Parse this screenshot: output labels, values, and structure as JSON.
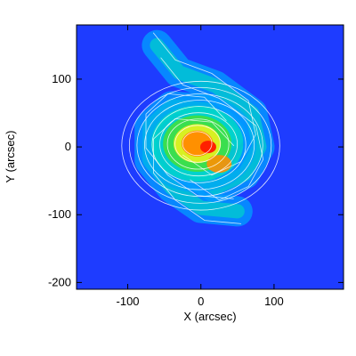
{
  "chart_data": {
    "type": "heatmap",
    "title": "",
    "xlabel": "X (arcsec)",
    "ylabel": "Y (arcsec)",
    "xlim": [
      -170,
      195
    ],
    "ylim": [
      -210,
      180
    ],
    "xticks": [
      -100,
      0,
      100
    ],
    "yticks": [
      -200,
      -100,
      0,
      100
    ],
    "xtick_labels": [
      "-100",
      "0",
      "100"
    ],
    "ytick_labels": [
      "-200",
      "-100",
      "0",
      "100"
    ],
    "colormap": [
      "#1e3cff",
      "#00a0ff",
      "#00e0c0",
      "#40e040",
      "#e0f020",
      "#ff9000",
      "#ff2000"
    ],
    "contour_color": "#ffffff",
    "grid": false,
    "features": {
      "core_peak": {
        "x": 10,
        "y": 0,
        "level": 1.0
      },
      "inner_core": {
        "x": -5,
        "y": 5,
        "level": 0.82
      },
      "secondary_knot": {
        "x": 25,
        "y": -25,
        "level": 0.72
      },
      "spiral_arms": [
        {
          "name": "",
          "points": [
            [
              40,
              20
            ],
            [
              10,
              55
            ],
            [
              -40,
              60
            ],
            [
              -70,
              30
            ],
            [
              -70,
              -20
            ],
            [
              -40,
              -60
            ],
            [
              0,
              -90
            ],
            [
              50,
              -95
            ]
          ]
        },
        {
          "name": "",
          "points": [
            [
              -20,
              -30
            ],
            [
              20,
              -60
            ],
            [
              60,
              -40
            ],
            [
              80,
              0
            ],
            [
              70,
              50
            ],
            [
              20,
              90
            ],
            [
              -30,
              110
            ],
            [
              -60,
              150
            ]
          ]
        }
      ]
    }
  }
}
